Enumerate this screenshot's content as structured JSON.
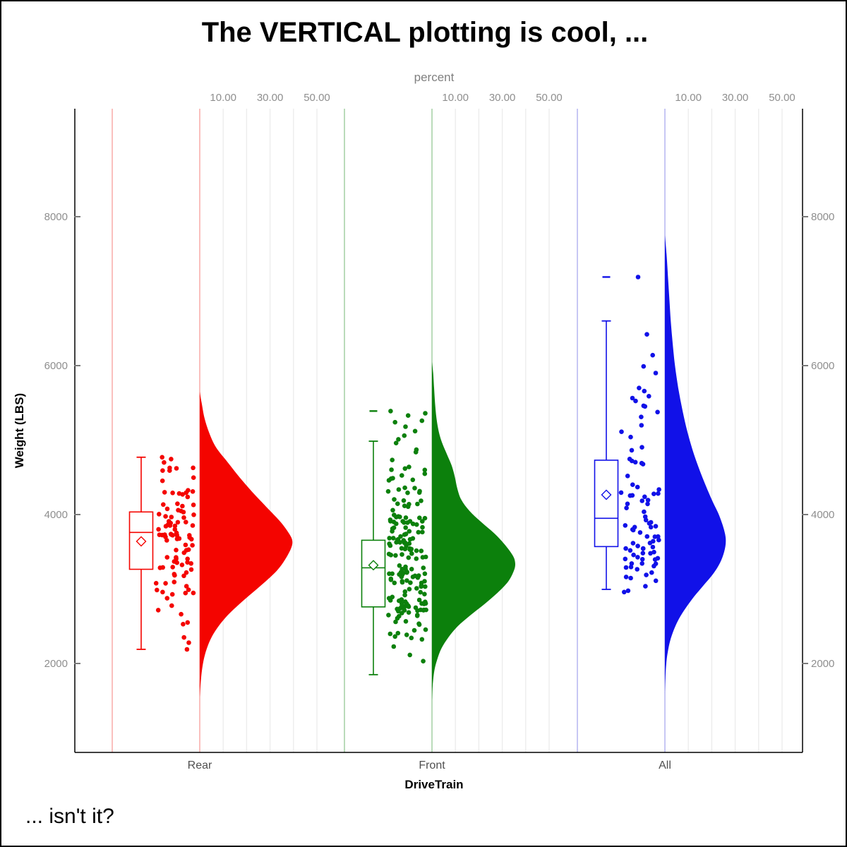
{
  "title": "The VERTICAL plotting is cool, ...",
  "footnote": "... isn't it?",
  "x2_axis": {
    "label": "percent",
    "grid_values": [
      10,
      20,
      30,
      40,
      50
    ],
    "labeled_values": [
      10,
      30,
      50
    ],
    "tick_labels": [
      "10.00",
      "30.00",
      "50.00"
    ]
  },
  "y_axis": {
    "label": "Weight (LBS)",
    "ticks": [
      2000,
      4000,
      6000,
      8000
    ],
    "range": [
      800,
      9450
    ],
    "shown_on_right": true
  },
  "x_axis": {
    "label": "DriveTrain",
    "categories": [
      "Rear",
      "Front",
      "All"
    ]
  },
  "colors": {
    "grid": "#ececec",
    "axis": "#000000",
    "tick_text": "#8e8e8e",
    "category_text": "#4f4f4f"
  },
  "chart_data": {
    "type": "raincloud (half-violin density + box plot + jittered points), vertical",
    "percent_per_gridline": 10,
    "groups": [
      {
        "name": "Rear",
        "color": "#f40400",
        "light_color": "#f8b0ae",
        "box": {
          "whisker_low": 2190,
          "q1": 3265,
          "median": 3760,
          "mean": 3640,
          "q3": 4035,
          "whisker_high": 4770,
          "far_values": []
        },
        "density": [
          [
            5650,
            0
          ],
          [
            5500,
            0.8
          ],
          [
            5300,
            2
          ],
          [
            5100,
            4
          ],
          [
            4900,
            7
          ],
          [
            4700,
            12
          ],
          [
            4500,
            17
          ],
          [
            4300,
            22.5
          ],
          [
            4100,
            28.5
          ],
          [
            3900,
            34.5
          ],
          [
            3750,
            38
          ],
          [
            3650,
            39.5
          ],
          [
            3550,
            39
          ],
          [
            3400,
            36.5
          ],
          [
            3250,
            33
          ],
          [
            3100,
            28
          ],
          [
            2950,
            22.5
          ],
          [
            2800,
            17
          ],
          [
            2650,
            12
          ],
          [
            2500,
            8
          ],
          [
            2350,
            5
          ],
          [
            2200,
            3
          ],
          [
            2050,
            1.7
          ],
          [
            1900,
            0.9
          ],
          [
            1700,
            0.3
          ],
          [
            1550,
            0
          ]
        ],
        "extra_points": [
          4770,
          4745,
          4700,
          2190,
          2280,
          2350
        ],
        "sample": {
          "count": 94,
          "seed": 7,
          "clamp": [
            2400,
            4680
          ]
        }
      },
      {
        "name": "Front",
        "color": "#0c800c",
        "light_color": "#a9d2a9",
        "box": {
          "whisker_low": 1850,
          "q1": 2760,
          "median": 3285,
          "mean": 3320,
          "q3": 3655,
          "whisker_high": 4985,
          "far_values": [
            5390
          ]
        },
        "density": [
          [
            6050,
            0
          ],
          [
            5900,
            0.5
          ],
          [
            5700,
            0.9
          ],
          [
            5500,
            1.3
          ],
          [
            5300,
            1.9
          ],
          [
            5100,
            3
          ],
          [
            4950,
            4.5
          ],
          [
            4800,
            6.5
          ],
          [
            4650,
            8.5
          ],
          [
            4500,
            9.8
          ],
          [
            4350,
            10.8
          ],
          [
            4200,
            12.5
          ],
          [
            4050,
            16
          ],
          [
            3900,
            21
          ],
          [
            3750,
            26.5
          ],
          [
            3600,
            31
          ],
          [
            3450,
            34.5
          ],
          [
            3350,
            35.5
          ],
          [
            3250,
            35
          ],
          [
            3100,
            32.5
          ],
          [
            2950,
            28
          ],
          [
            2800,
            22.5
          ],
          [
            2650,
            16.5
          ],
          [
            2500,
            11
          ],
          [
            2350,
            7
          ],
          [
            2200,
            4
          ],
          [
            2050,
            2.2
          ],
          [
            1900,
            1
          ],
          [
            1700,
            0.3
          ],
          [
            1500,
            0
          ]
        ],
        "extra_points": [
          5390,
          5360,
          5330,
          5260,
          5240,
          5180,
          5120,
          5060,
          5010,
          4960
        ],
        "sample": {
          "count": 180,
          "seed": 13,
          "clamp": [
            1850,
            4950
          ]
        }
      },
      {
        "name": "All",
        "color": "#1111e8",
        "light_color": "#b9b9f2",
        "box": {
          "whisker_low": 2995,
          "q1": 3570,
          "median": 3950,
          "mean": 4265,
          "q3": 4730,
          "whisker_high": 6600,
          "far_values": [
            7190
          ]
        },
        "density": [
          [
            7750,
            0
          ],
          [
            7500,
            0.7
          ],
          [
            7200,
            1.3
          ],
          [
            6900,
            1.9
          ],
          [
            6600,
            2.5
          ],
          [
            6300,
            3.3
          ],
          [
            6000,
            4.3
          ],
          [
            5700,
            5.7
          ],
          [
            5400,
            7.5
          ],
          [
            5100,
            9.7
          ],
          [
            4800,
            12.5
          ],
          [
            4500,
            16
          ],
          [
            4200,
            20
          ],
          [
            4000,
            23
          ],
          [
            3800,
            25.2
          ],
          [
            3650,
            26
          ],
          [
            3500,
            25.3
          ],
          [
            3350,
            23.5
          ],
          [
            3200,
            20.5
          ],
          [
            3050,
            16.5
          ],
          [
            2900,
            12.5
          ],
          [
            2750,
            9
          ],
          [
            2600,
            6
          ],
          [
            2450,
            3.8
          ],
          [
            2300,
            2.2
          ],
          [
            2150,
            1.2
          ],
          [
            2000,
            0.6
          ],
          [
            1800,
            0.2
          ],
          [
            1600,
            0
          ]
        ],
        "extra_points": [
          7190,
          6420,
          6140,
          5990,
          5900,
          5700,
          5590
        ],
        "sample": {
          "count": 81,
          "seed": 29,
          "clamp": [
            2950,
            5800
          ]
        }
      }
    ]
  }
}
